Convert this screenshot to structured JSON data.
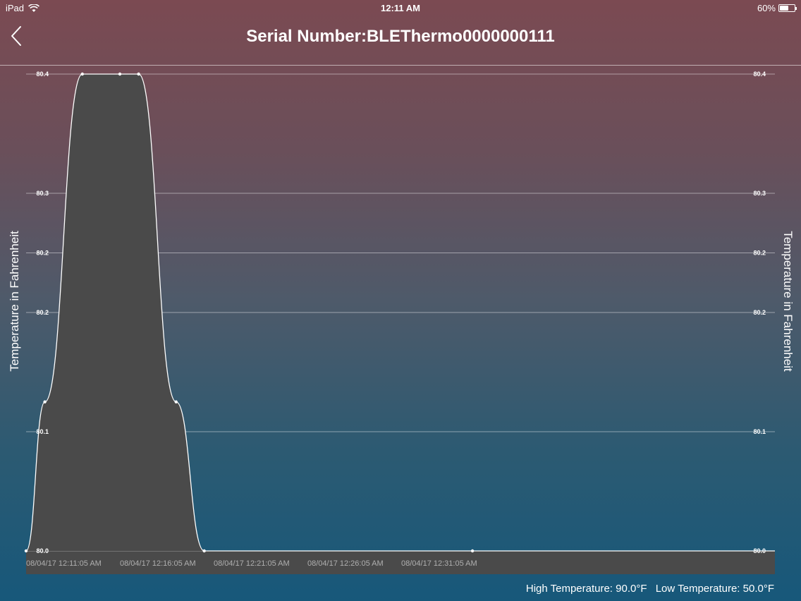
{
  "status_bar": {
    "device": "iPad",
    "time": "12:11 AM",
    "battery": "60%",
    "battery_level": 0.6
  },
  "header": {
    "title": "Serial Number:BLEThermo0000000111",
    "back_icon": "chevron-left-icon"
  },
  "chart_data": {
    "type": "area",
    "ylabel": "Temperature in Fahrenheit",
    "ylabel_right": "Temperature in Fahrenheit",
    "y_ticks": [
      {
        "value": 80.0,
        "label": "80.0"
      },
      {
        "value": 80.1,
        "label": "80.1"
      },
      {
        "value": 80.2,
        "label": "80.2"
      },
      {
        "value": 80.25,
        "label": "80.2"
      },
      {
        "value": 80.3,
        "label": "80.3"
      },
      {
        "value": 80.4,
        "label": "80.4"
      }
    ],
    "x_ticks": [
      "08/04/17 12:11:05 AM",
      "08/04/17 12:16:05 AM",
      "08/04/17 12:21:05 AM",
      "08/04/17 12:26:05 AM",
      "08/04/17 12:31:05 AM"
    ],
    "ylim": [
      80.0,
      80.4
    ],
    "x_minutes": [
      0,
      1,
      3,
      5,
      6,
      8,
      9.5,
      23.8
    ],
    "series": [
      {
        "values": [
          80.0,
          80.125,
          80.4,
          80.4,
          80.4,
          80.125,
          80.0,
          80.0
        ]
      }
    ],
    "grid": true,
    "fill_color": "#4a4a4a",
    "line_color": "#ffffff"
  },
  "footer": {
    "high": "High Temperature: 90.0°F",
    "low": "Low Temperature: 50.0°F"
  }
}
